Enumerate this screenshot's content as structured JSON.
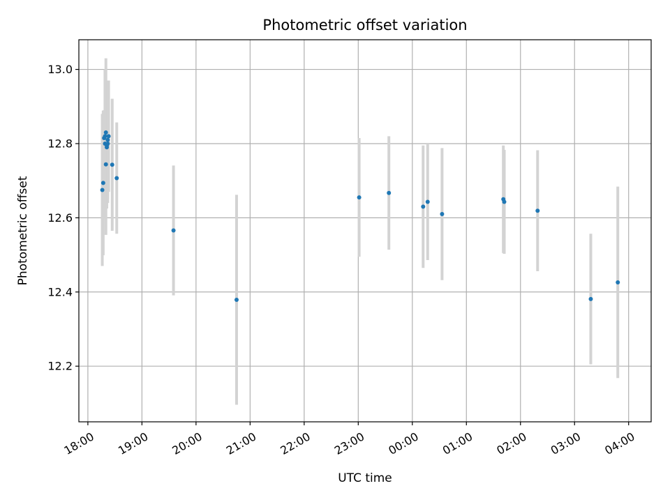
{
  "chart_data": {
    "type": "scatter",
    "title": "Photometric offset variation",
    "xlabel": "UTC time",
    "ylabel": "Photometric offset",
    "x_axis_kind": "time",
    "x_start_date": "18:00",
    "xlim": [
      "17:50",
      "04:25"
    ],
    "ylim": [
      12.05,
      13.08
    ],
    "grid": true,
    "legend": "none",
    "marker_color": "#1f77b4",
    "errorbar_color": "#d3d3d3",
    "x_ticks": [
      "18:00",
      "19:00",
      "20:00",
      "21:00",
      "22:00",
      "23:00",
      "00:00",
      "01:00",
      "02:00",
      "03:00",
      "04:00"
    ],
    "y_ticks": [
      "12.2",
      "12.4",
      "12.6",
      "12.8",
      "13.0"
    ],
    "y_tick_values": [
      12.2,
      12.4,
      12.6,
      12.8,
      13.0
    ],
    "points": [
      {
        "x": "18:16",
        "y": 12.675,
        "err": 0.205
      },
      {
        "x": "18:17",
        "y": 12.694,
        "err": 0.195
      },
      {
        "x": "18:18",
        "y": 12.815,
        "err": 0.075
      },
      {
        "x": "18:19",
        "y": 12.8,
        "err": 0.2
      },
      {
        "x": "18:19",
        "y": 12.82,
        "err": 0.18
      },
      {
        "x": "18:20",
        "y": 12.83,
        "err": 0.2
      },
      {
        "x": "18:20",
        "y": 12.744,
        "err": 0.19
      },
      {
        "x": "18:21",
        "y": 12.79,
        "err": 0.16
      },
      {
        "x": "18:21",
        "y": 12.795,
        "err": 0.17
      },
      {
        "x": "18:22",
        "y": 12.8,
        "err": 0.16
      },
      {
        "x": "18:22",
        "y": 12.81,
        "err": 0.16
      },
      {
        "x": "18:23",
        "y": 12.82,
        "err": 0.15
      },
      {
        "x": "18:27",
        "y": 12.743,
        "err": 0.178
      },
      {
        "x": "18:32",
        "y": 12.707,
        "err": 0.15
      },
      {
        "x": "19:35",
        "y": 12.566,
        "err": 0.175
      },
      {
        "x": "20:45",
        "y": 12.379,
        "err": 0.283
      },
      {
        "x": "23:01",
        "y": 12.655,
        "err": 0.16
      },
      {
        "x": "23:34",
        "y": 12.667,
        "err": 0.153
      },
      {
        "x": "00:12",
        "y": 12.63,
        "err": 0.165
      },
      {
        "x": "00:17",
        "y": 12.643,
        "err": 0.157
      },
      {
        "x": "00:33",
        "y": 12.61,
        "err": 0.178
      },
      {
        "x": "01:41",
        "y": 12.65,
        "err": 0.145
      },
      {
        "x": "01:42",
        "y": 12.643,
        "err": 0.14
      },
      {
        "x": "02:19",
        "y": 12.619,
        "err": 0.163
      },
      {
        "x": "03:18",
        "y": 12.381,
        "err": 0.176
      },
      {
        "x": "03:48",
        "y": 12.426,
        "err": 0.258
      }
    ]
  }
}
